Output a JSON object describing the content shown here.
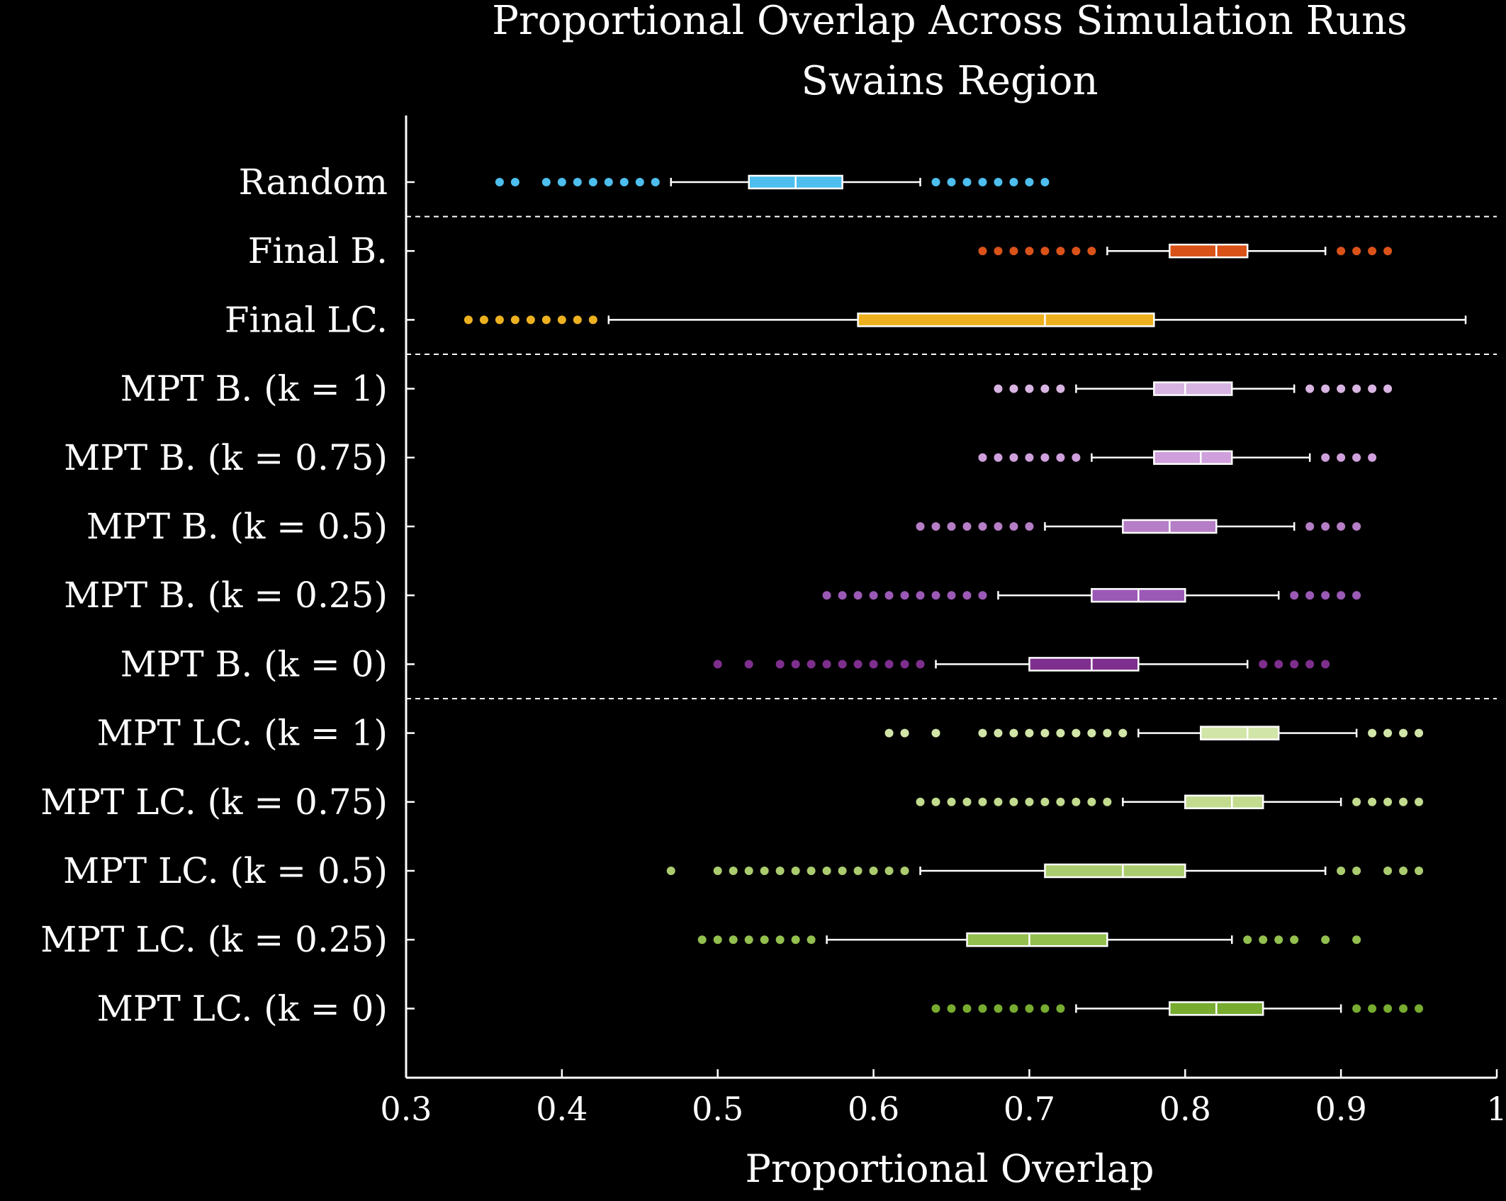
{
  "chart_data": {
    "type": "boxplot",
    "orientation": "horizontal",
    "title": "Proportional Overlap Across Simulation Runs",
    "subtitle": "Swains Region",
    "xlabel": "Proportional Overlap",
    "ylabel": "",
    "xlim": [
      0.3,
      1.0
    ],
    "xticks": [
      {
        "value": 0.3,
        "label": "0.3"
      },
      {
        "value": 0.4,
        "label": "0.4"
      },
      {
        "value": 0.5,
        "label": "0.5"
      },
      {
        "value": 0.6,
        "label": "0.6"
      },
      {
        "value": 0.7,
        "label": "0.7"
      },
      {
        "value": 0.8,
        "label": "0.8"
      },
      {
        "value": 0.9,
        "label": "0.9"
      },
      {
        "value": 1.0,
        "label": "1"
      }
    ],
    "group_separators_after": [
      0,
      2,
      7
    ],
    "grid": false,
    "series": [
      {
        "label": "Random",
        "color": "#4dbeee",
        "whisker_low": 0.47,
        "q1": 0.52,
        "median": 0.55,
        "q3": 0.58,
        "whisker_high": 0.63,
        "outliers": [
          0.36,
          0.37,
          0.39,
          0.4,
          0.41,
          0.42,
          0.43,
          0.44,
          0.45,
          0.46,
          0.64,
          0.65,
          0.66,
          0.67,
          0.68,
          0.69,
          0.7,
          0.71
        ]
      },
      {
        "label": "Final B.",
        "color": "#d95319",
        "whisker_low": 0.75,
        "q1": 0.79,
        "median": 0.82,
        "q3": 0.84,
        "whisker_high": 0.89,
        "outliers": [
          0.67,
          0.68,
          0.69,
          0.7,
          0.71,
          0.72,
          0.73,
          0.74,
          0.9,
          0.91,
          0.92,
          0.93
        ]
      },
      {
        "label": "Final LC.",
        "color": "#edb120",
        "whisker_low": 0.43,
        "q1": 0.59,
        "median": 0.71,
        "q3": 0.78,
        "whisker_high": 0.98,
        "outliers": [
          0.34,
          0.35,
          0.36,
          0.37,
          0.38,
          0.39,
          0.4,
          0.41,
          0.42
        ]
      },
      {
        "label": "MPT B. (k = 1)",
        "color": "#d8b4e2",
        "whisker_low": 0.73,
        "q1": 0.78,
        "median": 0.8,
        "q3": 0.83,
        "whisker_high": 0.87,
        "outliers": [
          0.68,
          0.69,
          0.7,
          0.71,
          0.72,
          0.88,
          0.89,
          0.9,
          0.91,
          0.92,
          0.93
        ]
      },
      {
        "label": "MPT B. (k = 0.75)",
        "color": "#cfa0dc",
        "whisker_low": 0.74,
        "q1": 0.78,
        "median": 0.81,
        "q3": 0.83,
        "whisker_high": 0.88,
        "outliers": [
          0.67,
          0.68,
          0.69,
          0.7,
          0.71,
          0.72,
          0.73,
          0.89,
          0.9,
          0.91,
          0.92
        ]
      },
      {
        "label": "MPT B. (k = 0.5)",
        "color": "#b57ec6",
        "whisker_low": 0.71,
        "q1": 0.76,
        "median": 0.79,
        "q3": 0.82,
        "whisker_high": 0.87,
        "outliers": [
          0.63,
          0.64,
          0.65,
          0.66,
          0.67,
          0.68,
          0.69,
          0.7,
          0.88,
          0.89,
          0.9,
          0.91
        ]
      },
      {
        "label": "MPT B. (k = 0.25)",
        "color": "#9b59b6",
        "whisker_low": 0.68,
        "q1": 0.74,
        "median": 0.77,
        "q3": 0.8,
        "whisker_high": 0.86,
        "outliers": [
          0.57,
          0.58,
          0.59,
          0.6,
          0.61,
          0.62,
          0.63,
          0.64,
          0.65,
          0.66,
          0.67,
          0.87,
          0.88,
          0.89,
          0.9,
          0.91
        ]
      },
      {
        "label": "MPT B. (k = 0)",
        "color": "#7e2f8e",
        "whisker_low": 0.64,
        "q1": 0.7,
        "median": 0.74,
        "q3": 0.77,
        "whisker_high": 0.84,
        "outliers": [
          0.5,
          0.52,
          0.54,
          0.55,
          0.56,
          0.57,
          0.58,
          0.59,
          0.6,
          0.61,
          0.62,
          0.63,
          0.85,
          0.86,
          0.87,
          0.88,
          0.89
        ]
      },
      {
        "label": "MPT LC. (k = 1)",
        "color": "#d2e5a8",
        "whisker_low": 0.77,
        "q1": 0.81,
        "median": 0.84,
        "q3": 0.86,
        "whisker_high": 0.91,
        "outliers": [
          0.61,
          0.62,
          0.64,
          0.67,
          0.68,
          0.69,
          0.7,
          0.71,
          0.72,
          0.73,
          0.74,
          0.75,
          0.76,
          0.92,
          0.93,
          0.94,
          0.95
        ]
      },
      {
        "label": "MPT LC. (k = 0.75)",
        "color": "#c2db8f",
        "whisker_low": 0.76,
        "q1": 0.8,
        "median": 0.83,
        "q3": 0.85,
        "whisker_high": 0.9,
        "outliers": [
          0.63,
          0.64,
          0.65,
          0.66,
          0.67,
          0.68,
          0.69,
          0.7,
          0.71,
          0.72,
          0.73,
          0.74,
          0.75,
          0.91,
          0.92,
          0.93,
          0.94,
          0.95
        ]
      },
      {
        "label": "MPT LC. (k = 0.5)",
        "color": "#abcc6e",
        "whisker_low": 0.63,
        "q1": 0.71,
        "median": 0.76,
        "q3": 0.8,
        "whisker_high": 0.89,
        "outliers": [
          0.47,
          0.5,
          0.51,
          0.52,
          0.53,
          0.54,
          0.55,
          0.56,
          0.57,
          0.58,
          0.59,
          0.6,
          0.61,
          0.62,
          0.9,
          0.91,
          0.93,
          0.94,
          0.95
        ]
      },
      {
        "label": "MPT LC. (k = 0.25)",
        "color": "#93bf4f",
        "whisker_low": 0.57,
        "q1": 0.66,
        "median": 0.7,
        "q3": 0.75,
        "whisker_high": 0.83,
        "outliers": [
          0.49,
          0.5,
          0.51,
          0.52,
          0.53,
          0.54,
          0.55,
          0.56,
          0.84,
          0.85,
          0.86,
          0.87,
          0.89,
          0.91
        ]
      },
      {
        "label": "MPT LC. (k = 0)",
        "color": "#77ac30",
        "whisker_low": 0.73,
        "q1": 0.79,
        "median": 0.82,
        "q3": 0.85,
        "whisker_high": 0.9,
        "outliers": [
          0.64,
          0.65,
          0.66,
          0.67,
          0.68,
          0.69,
          0.7,
          0.71,
          0.72,
          0.91,
          0.92,
          0.93,
          0.94,
          0.95
        ]
      }
    ]
  }
}
